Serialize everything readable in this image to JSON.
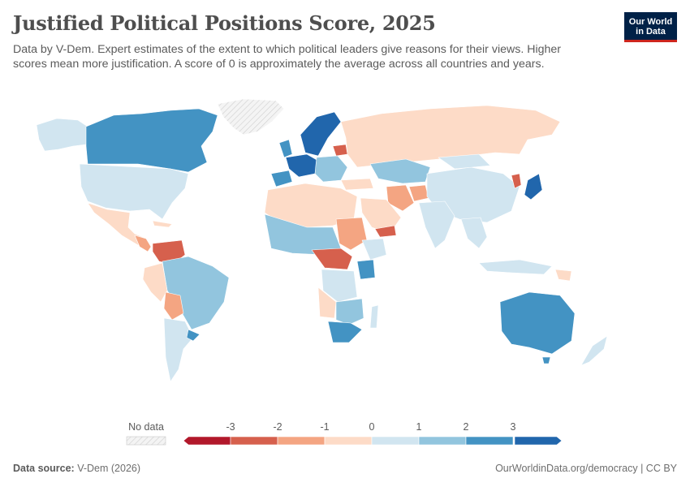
{
  "header": {
    "title": "Justified Political Positions Score, 2025",
    "subtitle": "Data by V-Dem. Expert estimates of the extent to which political leaders give reasons for their views. Higher scores mean more justification. A score of 0 is approximately the average across all countries and years."
  },
  "logo": {
    "line1": "Our World",
    "line2": "in Data"
  },
  "legend": {
    "no_data_label": "No data",
    "ticks": [
      "-3",
      "-2",
      "-1",
      "0",
      "1",
      "2",
      "3"
    ],
    "bins": [
      {
        "label": "below -3",
        "color": "#b2182b"
      },
      {
        "label": "-3 to -2",
        "color": "#d6604d"
      },
      {
        "label": "-2 to -1",
        "color": "#f4a582"
      },
      {
        "label": "-1 to 0",
        "color": "#fddbc7"
      },
      {
        "label": "0 to 1",
        "color": "#d1e5f0"
      },
      {
        "label": "1 to 2",
        "color": "#92c5de"
      },
      {
        "label": "2 to 3",
        "color": "#4393c3"
      },
      {
        "label": "above 3",
        "color": "#2166ac"
      }
    ]
  },
  "colors": {
    "neg3": "#b2182b",
    "neg2": "#d6604d",
    "neg1": "#f4a582",
    "neg0": "#fddbc7",
    "pos0": "#d1e5f0",
    "pos1": "#92c5de",
    "pos2": "#4393c3",
    "pos3": "#2166ac",
    "nodata": "#f0f0f0",
    "border": "#ffffff"
  },
  "footer": {
    "source_label": "Data source:",
    "source_value": "V-Dem (2026)",
    "link": "OurWorldinData.org/democracy | CC BY"
  }
}
